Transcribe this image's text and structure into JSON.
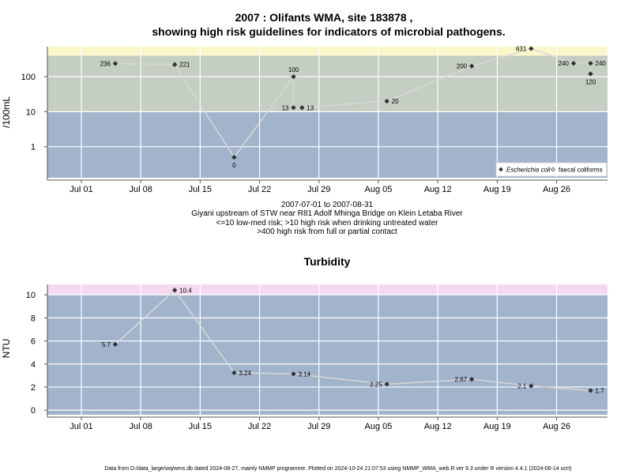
{
  "footer": "Data from D:/data_large/wq/wms.db dated 2024-08-27, mainly NMMP programme. Plotted on 2024-10-24 21:07:53 using NMMP_WMA_web.R ver 9.3 under R version 4.4.1 (2024-06-14 ucrt)",
  "chart_data": [
    {
      "type": "line",
      "title_line1": "2007 : Olifants WMA, site 183878 ,",
      "title_line2": "showing high risk guidelines for indicators of microbial pathogens.",
      "subtitle_lines": [
        "2007-07-01 to 2007-08-31",
        "Giyani upstream of STW near R81 Adolf Mhinga Bridge on Klein Letaba River",
        "<=10 low-med risk; >10 high risk when drinking untreated water",
        ">400 high risk from full or partial contact"
      ],
      "xlabel": "",
      "ylabel": "/100mL",
      "yscale": "log10",
      "ylim": [
        0.13,
        720
      ],
      "xlim": [
        "2007-06-27",
        "2007-09-01"
      ],
      "x_ticks": [
        "Jul 01",
        "Jul 08",
        "Jul 15",
        "Jul 22",
        "Jul 29",
        "Aug 05",
        "Aug 12",
        "Aug 19",
        "Aug 26"
      ],
      "x_tick_dates": [
        "2007-07-01",
        "2007-07-08",
        "2007-07-15",
        "2007-07-22",
        "2007-07-29",
        "2007-08-05",
        "2007-08-12",
        "2007-08-19",
        "2007-08-26"
      ],
      "y_ticks": [
        1,
        10,
        100
      ],
      "y_tick_labels": [
        "1",
        "10",
        "100"
      ],
      "bands": [
        {
          "from": 0.13,
          "to": 10,
          "color": "#a2b4cc"
        },
        {
          "from": 10,
          "to": 400,
          "color": "#c5cec3"
        },
        {
          "from": 400,
          "to": 720,
          "color": "#fbf7cb"
        }
      ],
      "grid": true,
      "legend_position": "bottom-right",
      "series": [
        {
          "name": "Escherichia coli",
          "marker": "diamond",
          "color": "#333333",
          "line_color": "#d8d8d8",
          "points": [
            {
              "x": "2007-07-05",
              "y": 236,
              "label": "236",
              "label_pos": "left"
            },
            {
              "x": "2007-07-12",
              "y": 221,
              "label": "221",
              "label_pos": "right"
            },
            {
              "x": "2007-07-19",
              "y": 0.5,
              "label": "0",
              "label_pos": "below"
            },
            {
              "x": "2007-07-26",
              "y": 100,
              "label": "100",
              "label_pos": "above"
            },
            {
              "x": "2007-07-26",
              "y": 13,
              "label": "13",
              "label_pos": "left"
            },
            {
              "x": "2007-07-27",
              "y": 13,
              "label": "13",
              "label_pos": "right"
            },
            {
              "x": "2007-08-06",
              "y": 20,
              "label": "20",
              "label_pos": "right"
            },
            {
              "x": "2007-08-16",
              "y": 200,
              "label": "200",
              "label_pos": "left"
            },
            {
              "x": "2007-08-23",
              "y": 631,
              "label": "631",
              "label_pos": "left"
            },
            {
              "x": "2007-08-28",
              "y": 240,
              "label": "240",
              "label_pos": "left"
            },
            {
              "x": "2007-08-30",
              "y": 240,
              "label": "240",
              "label_pos": "right"
            },
            {
              "x": "2007-08-30",
              "y": 120,
              "label": "120",
              "label_pos": "below"
            }
          ]
        },
        {
          "name": "faecal coliforms",
          "marker": "open-diamond",
          "color": "#333333",
          "points": []
        }
      ]
    },
    {
      "type": "line",
      "title": "Turbidity",
      "xlabel": "",
      "ylabel": "NTU",
      "yscale": "linear",
      "ylim": [
        -0.4,
        10.9
      ],
      "xlim": [
        "2007-06-27",
        "2007-09-01"
      ],
      "x_ticks": [
        "Jul 01",
        "Jul 08",
        "Jul 15",
        "Jul 22",
        "Jul 29",
        "Aug 05",
        "Aug 12",
        "Aug 19",
        "Aug 26"
      ],
      "x_tick_dates": [
        "2007-07-01",
        "2007-07-08",
        "2007-07-15",
        "2007-07-22",
        "2007-07-29",
        "2007-08-05",
        "2007-08-12",
        "2007-08-19",
        "2007-08-26"
      ],
      "y_ticks": [
        0,
        2,
        4,
        6,
        8,
        10
      ],
      "y_tick_labels": [
        "0",
        "2",
        "4",
        "6",
        "8",
        "10"
      ],
      "bands": [
        {
          "from": -0.4,
          "to": 10,
          "color": "#a2b4cc"
        },
        {
          "from": 10,
          "to": 10.9,
          "color": "#f5d9f1"
        }
      ],
      "grid": true,
      "series": [
        {
          "name": "",
          "marker": "diamond",
          "color": "#333333",
          "line_color": "#d8d8d8",
          "points": [
            {
              "x": "2007-07-05",
              "y": 5.7,
              "label": "5.7",
              "label_pos": "left"
            },
            {
              "x": "2007-07-12",
              "y": 10.4,
              "label": "10.4",
              "label_pos": "right"
            },
            {
              "x": "2007-07-19",
              "y": 3.24,
              "label": "3.24",
              "label_pos": "right"
            },
            {
              "x": "2007-07-26",
              "y": 3.14,
              "label": "3.14",
              "label_pos": "right"
            },
            {
              "x": "2007-08-06",
              "y": 2.25,
              "label": "2.25",
              "label_pos": "left"
            },
            {
              "x": "2007-08-16",
              "y": 2.67,
              "label": "2.67",
              "label_pos": "left"
            },
            {
              "x": "2007-08-23",
              "y": 2.1,
              "label": "2.1",
              "label_pos": "left"
            },
            {
              "x": "2007-08-30",
              "y": 1.7,
              "label": "1.7",
              "label_pos": "right"
            }
          ]
        }
      ]
    }
  ]
}
